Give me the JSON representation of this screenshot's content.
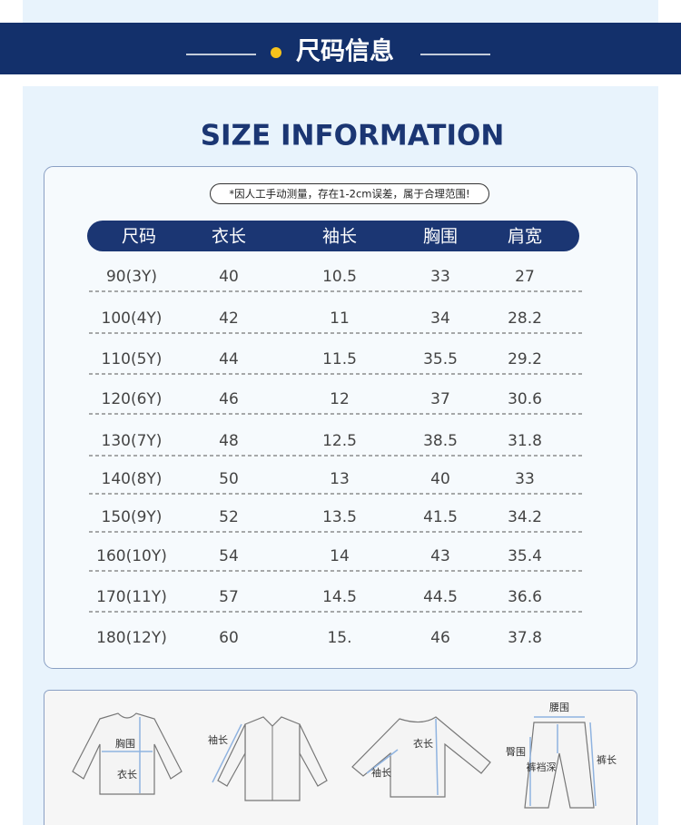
{
  "header": {
    "title": "尺码信息"
  },
  "subtitle": "SIZE INFORMATION",
  "note": "*因人工手动测量，存在1-2cm误差，属于合理范围!",
  "table": {
    "columns": [
      "尺码",
      "衣长",
      "袖长",
      "胸围",
      "肩宽"
    ],
    "rows": [
      [
        "90(3Y)",
        "40",
        "10.5",
        "33",
        "27"
      ],
      [
        "100(4Y)",
        "42",
        "11",
        "34",
        "28.2"
      ],
      [
        "110(5Y)",
        "44",
        "11.5",
        "35.5",
        "29.2"
      ],
      [
        "120(6Y)",
        "46",
        "12",
        "37",
        "30.6"
      ],
      [
        "130(7Y)",
        "48",
        "12.5",
        "38.5",
        "31.8"
      ],
      [
        "140(8Y)",
        "50",
        "13",
        "40",
        "33"
      ],
      [
        "150(9Y)",
        "52",
        "13.5",
        "41.5",
        "34.2"
      ],
      [
        "160(10Y)",
        "54",
        "14",
        "43",
        "35.4"
      ],
      [
        "170(11Y)",
        "57",
        "14.5",
        "44.5",
        "36.6"
      ],
      [
        "180(12Y)",
        "60",
        "15.",
        "46",
        "37.8"
      ]
    ]
  },
  "diagrams": [
    {
      "labels": [
        "胸围",
        "衣长"
      ]
    },
    {
      "labels": [
        "袖长"
      ]
    },
    {
      "labels": [
        "衣长",
        "袖长"
      ]
    },
    {
      "labels": [
        "腰围",
        "臀围",
        "裤裆深",
        "裤长"
      ]
    }
  ]
}
